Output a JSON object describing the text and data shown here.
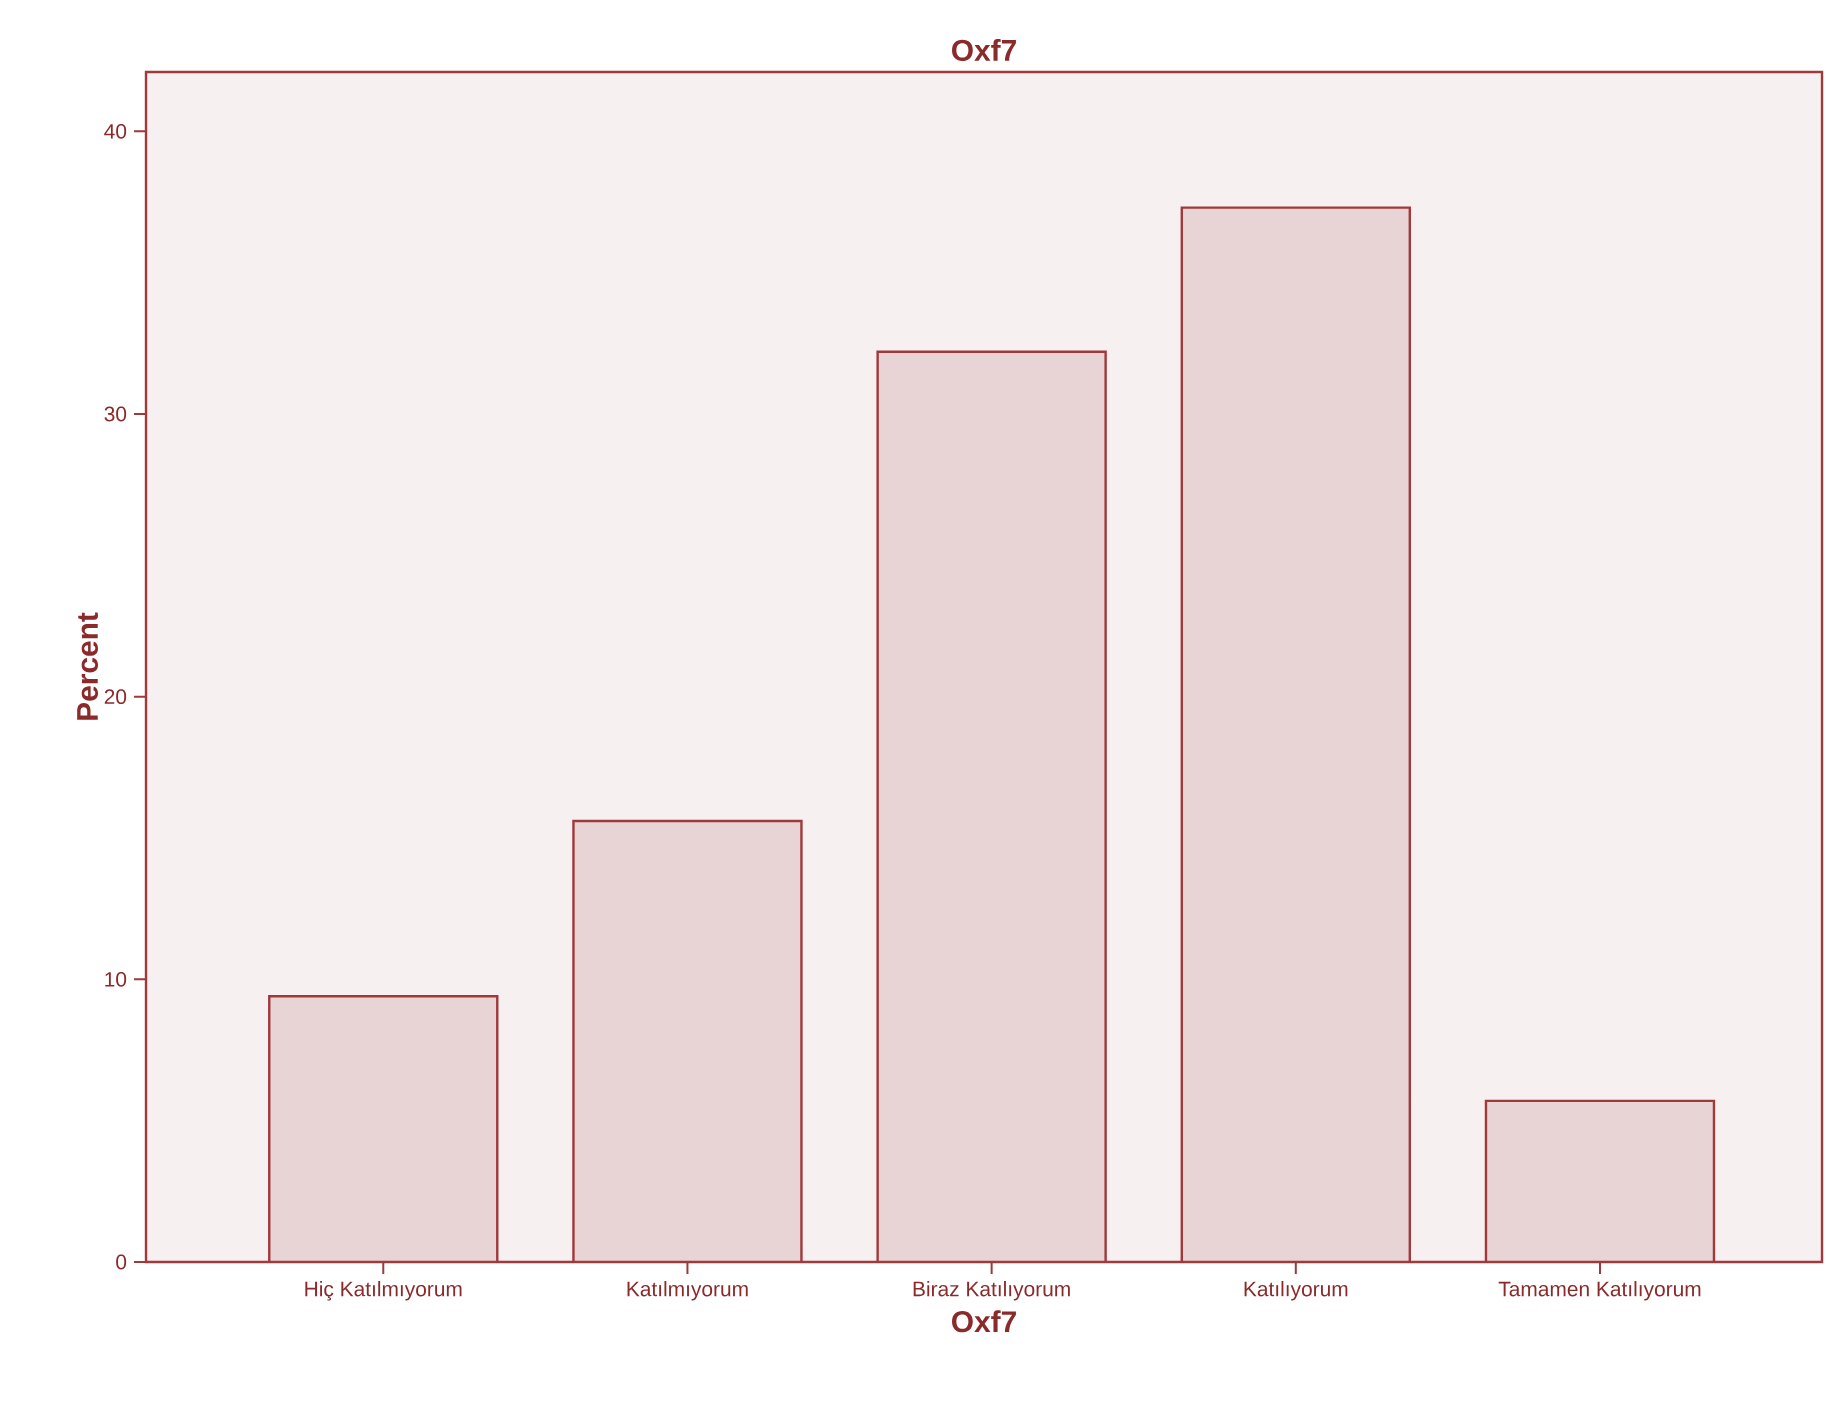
{
  "chart_data": {
    "type": "bar",
    "title": "Oxf7",
    "xlabel": "Oxf7",
    "ylabel": "Percent",
    "categories": [
      "Hiç Katılmıyorum",
      "Katılmıyorum",
      "Biraz Katılıyorum",
      "Katılıyorum",
      "Tamamen Katılıyorum"
    ],
    "values": [
      9.4,
      15.6,
      32.2,
      37.3,
      5.7
    ],
    "color": "#e8d4d5",
    "ylim": [
      0,
      42.1
    ],
    "yticks": [
      0,
      10,
      20,
      30,
      40
    ]
  }
}
